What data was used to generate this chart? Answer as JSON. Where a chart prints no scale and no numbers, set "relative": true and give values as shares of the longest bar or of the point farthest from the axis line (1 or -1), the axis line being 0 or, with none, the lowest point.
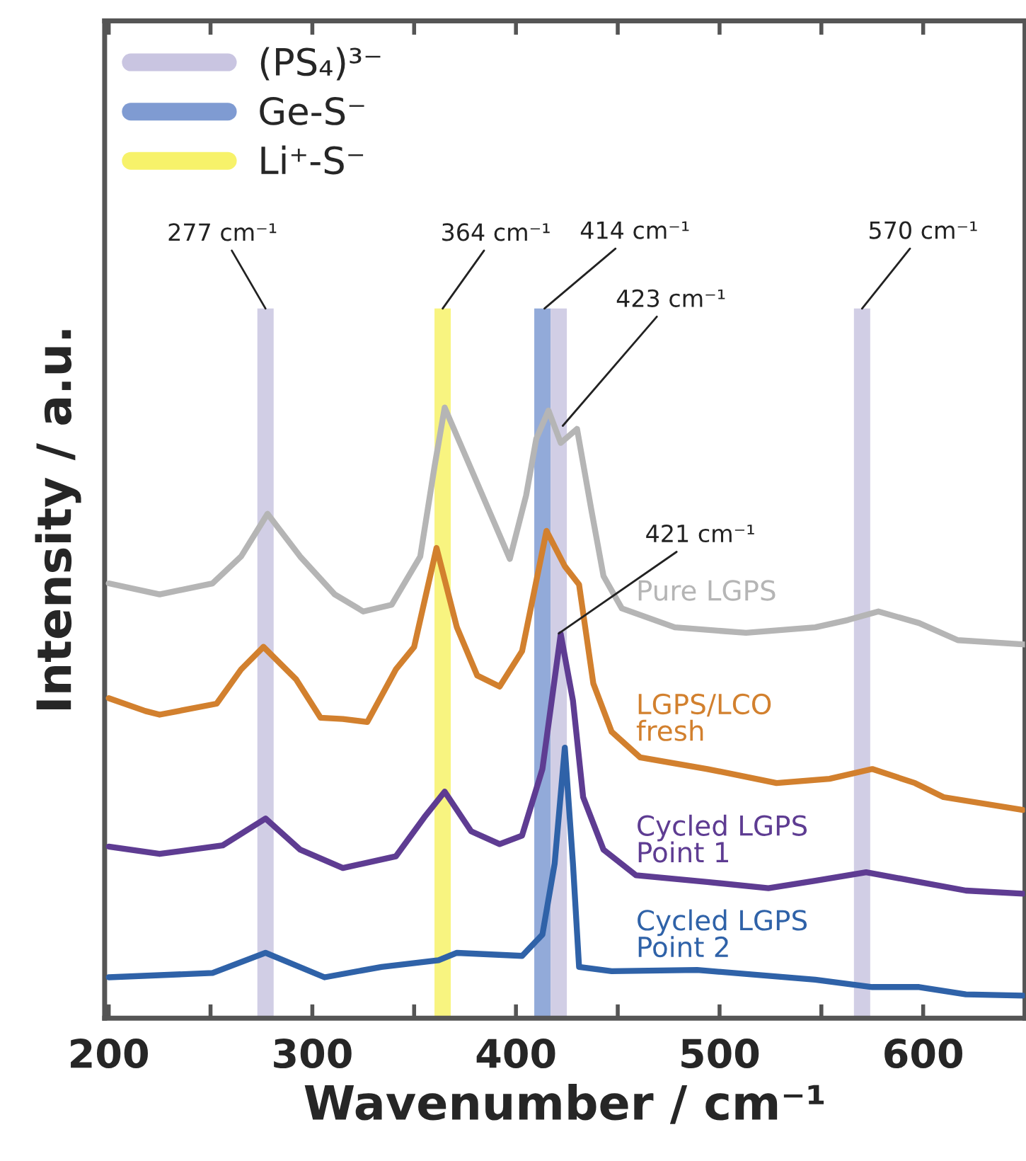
{
  "chart_data": {
    "type": "line",
    "relative": true,
    "xlabel": "Wavenumber / cm⁻¹",
    "ylabel": "Intensity / a.u.",
    "xlim": [
      198,
      650
    ],
    "xticks": [
      200,
      {
        "value": 250,
        "label": null
      },
      300,
      {
        "value": 350,
        "label": null
      },
      400,
      {
        "value": 450,
        "label": null
      },
      500,
      {
        "value": 550,
        "label": null
      },
      600
    ],
    "tick_labels": "x",
    "grid": false,
    "legend": "top left",
    "marker": "none",
    "line_style": "solid",
    "series": [
      {
        "name": "Pure LGPS",
        "color": "#b5b5b5",
        "x": [
          200,
          225,
          251,
          265,
          278,
          294,
          311,
          325,
          339,
          353,
          360,
          365,
          397,
          405,
          410,
          416,
          422,
          430,
          437,
          443,
          452,
          478,
          513,
          547,
          563,
          578,
          598,
          617,
          650
        ],
        "values": [
          0.712,
          0.694,
          0.712,
          0.756,
          0.826,
          0.756,
          0.694,
          0.666,
          0.677,
          0.756,
          0.903,
          1.0,
          0.752,
          0.856,
          0.949,
          0.995,
          0.942,
          0.965,
          0.833,
          0.724,
          0.671,
          0.64,
          0.631,
          0.64,
          0.652,
          0.666,
          0.647,
          0.619,
          0.612
        ]
      },
      {
        "name": "LGPS/LCO\nfresh",
        "color": "#d2802e",
        "x": [
          200,
          218,
          225,
          253,
          265,
          276,
          292,
          304,
          315,
          327,
          341,
          350,
          361,
          371,
          381,
          392,
          403,
          415,
          424,
          431,
          438,
          447,
          461,
          494,
          528,
          554,
          575,
          596,
          610,
          649
        ],
        "values": [
          0.524,
          0.503,
          0.497,
          0.515,
          0.571,
          0.608,
          0.555,
          0.492,
          0.49,
          0.485,
          0.571,
          0.608,
          0.77,
          0.64,
          0.561,
          0.543,
          0.601,
          0.798,
          0.74,
          0.71,
          0.548,
          0.469,
          0.427,
          0.408,
          0.385,
          0.392,
          0.408,
          0.385,
          0.362,
          0.341
        ]
      },
      {
        "name": "Cycled LGPS\nPoint 1",
        "color": "#5e3c92",
        "x": [
          200,
          225,
          256,
          277,
          294,
          315,
          341,
          355,
          365,
          378,
          392,
          403,
          413,
          422,
          428,
          433,
          443,
          459,
          494,
          524,
          547,
          572,
          598,
          621,
          649
        ],
        "values": [
          0.281,
          0.269,
          0.283,
          0.327,
          0.276,
          0.246,
          0.265,
          0.329,
          0.371,
          0.306,
          0.285,
          0.299,
          0.408,
          0.629,
          0.52,
          0.362,
          0.276,
          0.234,
          0.223,
          0.213,
          0.225,
          0.239,
          0.223,
          0.209,
          0.204
        ]
      },
      {
        "name": "Cycled LGPS\nPoint 2",
        "color": "#2f62a8",
        "x": [
          200,
          251,
          277,
          306,
          334,
          362,
          371,
          403,
          413,
          419,
          424,
          428,
          431,
          447,
          489,
          547,
          575,
          598,
          621,
          649
        ],
        "values": [
          0.067,
          0.074,
          0.107,
          0.067,
          0.084,
          0.095,
          0.107,
          0.102,
          0.137,
          0.253,
          0.443,
          0.253,
          0.084,
          0.077,
          0.079,
          0.063,
          0.051,
          0.051,
          0.039,
          0.037
        ]
      }
    ],
    "bands": [
      {
        "axis": "x",
        "from": 273,
        "to": 281,
        "label": "(PS₄)³⁻",
        "color": "#c9c5e1"
      },
      {
        "axis": "x",
        "from": 409,
        "to": 417,
        "label": "Ge-S⁻",
        "color": "#7f9bd2"
      },
      {
        "axis": "x",
        "from": 360,
        "to": 368,
        "label": "Li⁺-S⁻",
        "color": "#f7f26a"
      },
      {
        "axis": "x",
        "from": 417,
        "to": 425,
        "label": null,
        "color": "#c9c5e1"
      },
      {
        "axis": "x",
        "from": 566,
        "to": 574,
        "label": null,
        "color": "#c9c5e1"
      }
    ],
    "annotations": [
      {
        "text": "277 cm⁻¹",
        "x": 277,
        "y": 1.162
      },
      {
        "text": "364 cm⁻¹",
        "x": 364,
        "y": 1.162
      },
      {
        "text": "414 cm⁻¹",
        "x": 414,
        "y": 1.162
      },
      {
        "text": "570 cm⁻¹",
        "x": 570,
        "y": 1.162
      },
      {
        "text": "423 cm⁻¹",
        "x": 423,
        "y": 0.97
      },
      {
        "text": "421 cm⁻¹",
        "x": 421,
        "y": 0.63
      }
    ]
  }
}
